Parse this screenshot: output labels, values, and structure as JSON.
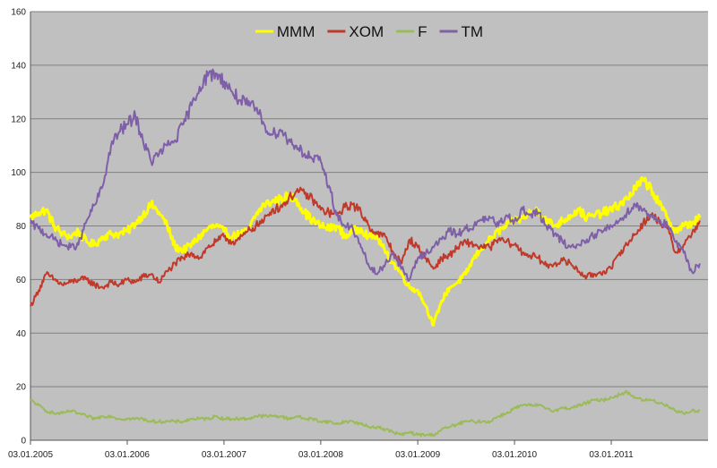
{
  "chart_data": {
    "type": "line",
    "title": "",
    "xlabel": "",
    "ylabel": "",
    "ylim": [
      0,
      160
    ],
    "yticks": [
      0,
      20,
      40,
      60,
      80,
      100,
      120,
      140,
      160
    ],
    "xlim": [
      "2005-01-03",
      "2012-01-03"
    ],
    "xticks": [
      {
        "date": "2005-01-03",
        "label": "03.01.2005"
      },
      {
        "date": "2006-01-03",
        "label": "03.01.2006"
      },
      {
        "date": "2007-01-03",
        "label": "03.01.2007"
      },
      {
        "date": "2008-01-03",
        "label": "03.01.2008"
      },
      {
        "date": "2009-01-03",
        "label": "03.01.2009"
      },
      {
        "date": "2010-01-03",
        "label": "03.01.2010"
      },
      {
        "date": "2011-01-03",
        "label": "03.01.2011"
      }
    ],
    "grid": "horizontal",
    "legend": "top-center",
    "background": "#c0c0c0",
    "dates": [
      "2005-01",
      "2005-02",
      "2005-03",
      "2005-04",
      "2005-05",
      "2005-06",
      "2005-07",
      "2005-08",
      "2005-09",
      "2005-10",
      "2005-11",
      "2005-12",
      "2006-01",
      "2006-02",
      "2006-03",
      "2006-04",
      "2006-05",
      "2006-06",
      "2006-07",
      "2006-08",
      "2006-09",
      "2006-10",
      "2006-11",
      "2006-12",
      "2007-01",
      "2007-02",
      "2007-03",
      "2007-04",
      "2007-05",
      "2007-06",
      "2007-07",
      "2007-08",
      "2007-09",
      "2007-10",
      "2007-11",
      "2007-12",
      "2008-01",
      "2008-02",
      "2008-03",
      "2008-04",
      "2008-05",
      "2008-06",
      "2008-07",
      "2008-08",
      "2008-09",
      "2008-10",
      "2008-11",
      "2008-12",
      "2009-01",
      "2009-02",
      "2009-03",
      "2009-04",
      "2009-05",
      "2009-06",
      "2009-07",
      "2009-08",
      "2009-09",
      "2009-10",
      "2009-11",
      "2009-12",
      "2010-01",
      "2010-02",
      "2010-03",
      "2010-04",
      "2010-05",
      "2010-06",
      "2010-07",
      "2010-08",
      "2010-09",
      "2010-10",
      "2010-11",
      "2010-12",
      "2011-01",
      "2011-02",
      "2011-03",
      "2011-04",
      "2011-05",
      "2011-06",
      "2011-07",
      "2011-08",
      "2011-09",
      "2011-10",
      "2011-11",
      "2011-12"
    ],
    "series": [
      {
        "name": "MMM",
        "color": "#ffff00",
        "width": 3,
        "values": [
          83,
          85,
          86,
          80,
          77,
          76,
          78,
          74,
          73,
          76,
          77,
          77,
          78,
          81,
          84,
          88,
          85,
          80,
          72,
          71,
          73,
          76,
          79,
          80,
          78,
          76,
          77,
          78,
          84,
          88,
          89,
          90,
          91,
          90,
          85,
          82,
          80,
          79,
          80,
          76,
          78,
          79,
          76,
          76,
          70,
          66,
          62,
          57,
          56,
          50,
          43,
          52,
          57,
          59,
          62,
          68,
          72,
          75,
          78,
          80,
          82,
          83,
          85,
          86,
          82,
          80,
          82,
          84,
          86,
          83,
          84,
          85,
          86,
          88,
          90,
          94,
          97,
          94,
          88,
          83,
          78,
          80,
          81,
          83
        ]
      },
      {
        "name": "XOM",
        "color": "#c0392b",
        "width": 2,
        "values": [
          50,
          56,
          62,
          60,
          58,
          59,
          60,
          60,
          58,
          57,
          59,
          58,
          60,
          59,
          61,
          62,
          59,
          63,
          66,
          68,
          70,
          68,
          72,
          74,
          76,
          74,
          75,
          78,
          80,
          82,
          86,
          87,
          90,
          93,
          92,
          90,
          86,
          85,
          84,
          87,
          88,
          85,
          80,
          77,
          76,
          70,
          66,
          75,
          72,
          68,
          64,
          68,
          69,
          72,
          74,
          73,
          72,
          72,
          75,
          74,
          73,
          70,
          69,
          68,
          65,
          66,
          67,
          66,
          63,
          61,
          62,
          63,
          64,
          70,
          73,
          77,
          81,
          84,
          82,
          79,
          70,
          73,
          77,
          82
        ]
      },
      {
        "name": "F",
        "color": "#9bbb59",
        "width": 2,
        "values": [
          15,
          13,
          11,
          10,
          10,
          11,
          10,
          9,
          8,
          9,
          9,
          8,
          8,
          8,
          8,
          7,
          7,
          7,
          7,
          7,
          8,
          8,
          8,
          9,
          8,
          8,
          8,
          8,
          9,
          9,
          9,
          9,
          8,
          9,
          8,
          8,
          7,
          7,
          6,
          7,
          7,
          6,
          5,
          5,
          4,
          3,
          2,
          3,
          2,
          2,
          2,
          4,
          5,
          6,
          7,
          7,
          7,
          7,
          9,
          10,
          12,
          13,
          13,
          13,
          12,
          11,
          12,
          12,
          13,
          14,
          15,
          15,
          16,
          17,
          18,
          16,
          15,
          15,
          14,
          13,
          11,
          10,
          11,
          11
        ]
      },
      {
        "name": "TM",
        "color": "#7e5fa8",
        "width": 2,
        "values": [
          81,
          79,
          77,
          75,
          73,
          72,
          73,
          82,
          88,
          95,
          110,
          115,
          118,
          121,
          112,
          104,
          107,
          110,
          112,
          118,
          125,
          132,
          136,
          137,
          134,
          130,
          127,
          125,
          124,
          118,
          114,
          116,
          112,
          110,
          107,
          105,
          104,
          95,
          84,
          80,
          79,
          72,
          65,
          62,
          66,
          70,
          64,
          60,
          68,
          70,
          72,
          75,
          78,
          77,
          79,
          80,
          82,
          83,
          80,
          84,
          82,
          86,
          84,
          85,
          80,
          77,
          74,
          72,
          73,
          75,
          77,
          78,
          80,
          82,
          85,
          88,
          86,
          84,
          82,
          80,
          74,
          70,
          63,
          66
        ]
      }
    ]
  }
}
